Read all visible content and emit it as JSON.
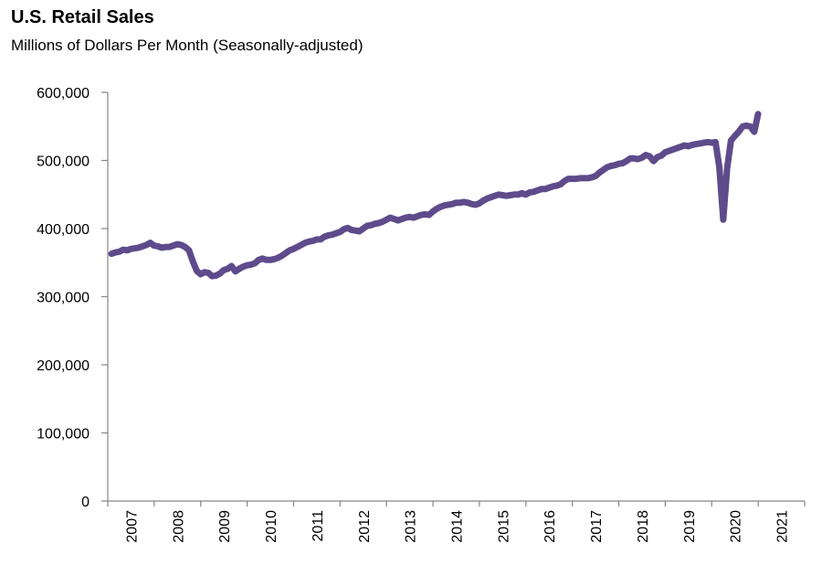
{
  "chart_data": {
    "type": "line",
    "title": "U.S. Retail Sales",
    "subtitle": "Millions of Dollars Per Month (Seasonally-adjusted)",
    "xlabel": "",
    "ylabel": "",
    "ylim": [
      0,
      600000
    ],
    "yticks": [
      0,
      100000,
      200000,
      300000,
      400000,
      500000,
      600000
    ],
    "ytick_labels": [
      "0",
      "100,000",
      "200,000",
      "300,000",
      "400,000",
      "500,000",
      "600,000"
    ],
    "xtick_labels": [
      "2007",
      "2008",
      "2009",
      "2010",
      "2011",
      "2012",
      "2013",
      "2014",
      "2015",
      "2016",
      "2017",
      "2018",
      "2019",
      "2020",
      "2021"
    ],
    "x_start": "2007-01",
    "x_frequency": "monthly",
    "grid": false,
    "legend": "none",
    "line_color": "#5e4b8b",
    "series": [
      {
        "name": "U.S. Retail Sales",
        "values": [
          363000,
          365000,
          366000,
          369000,
          368000,
          370000,
          371000,
          372000,
          374000,
          376000,
          379000,
          375000,
          374000,
          372000,
          373000,
          373000,
          375000,
          377000,
          376000,
          373000,
          368000,
          352000,
          338000,
          333000,
          336000,
          335000,
          330000,
          331000,
          334000,
          339000,
          341000,
          345000,
          337000,
          341000,
          344000,
          346000,
          347000,
          349000,
          354000,
          356000,
          354000,
          354000,
          355000,
          357000,
          360000,
          364000,
          368000,
          370000,
          373000,
          376000,
          379000,
          381000,
          382000,
          384000,
          384000,
          388000,
          390000,
          391000,
          393000,
          395000,
          399000,
          401000,
          398000,
          397000,
          396000,
          400000,
          404000,
          405000,
          407000,
          408000,
          410000,
          413000,
          416000,
          414000,
          412000,
          414000,
          416000,
          417000,
          416000,
          418000,
          420000,
          421000,
          420000,
          425000,
          429000,
          432000,
          434000,
          435000,
          436000,
          438000,
          438000,
          439000,
          438000,
          436000,
          435000,
          437000,
          441000,
          444000,
          446000,
          448000,
          450000,
          449000,
          448000,
          449000,
          450000,
          450000,
          452000,
          450000,
          453000,
          454000,
          456000,
          458000,
          458000,
          460000,
          462000,
          463000,
          465000,
          470000,
          473000,
          473000,
          473000,
          474000,
          474000,
          474000,
          475000,
          477000,
          482000,
          486000,
          490000,
          492000,
          493000,
          495000,
          496000,
          499000,
          503000,
          503000,
          502000,
          504000,
          508000,
          506000,
          499000,
          505000,
          507000,
          512000,
          514000,
          516000,
          518000,
          520000,
          522000,
          521000,
          523000,
          524000,
          525000,
          526000,
          527000,
          526000,
          527000,
          490000,
          413000,
          488000,
          529000,
          536000,
          542000,
          550000,
          551000,
          550000,
          542000,
          568000
        ]
      }
    ]
  }
}
